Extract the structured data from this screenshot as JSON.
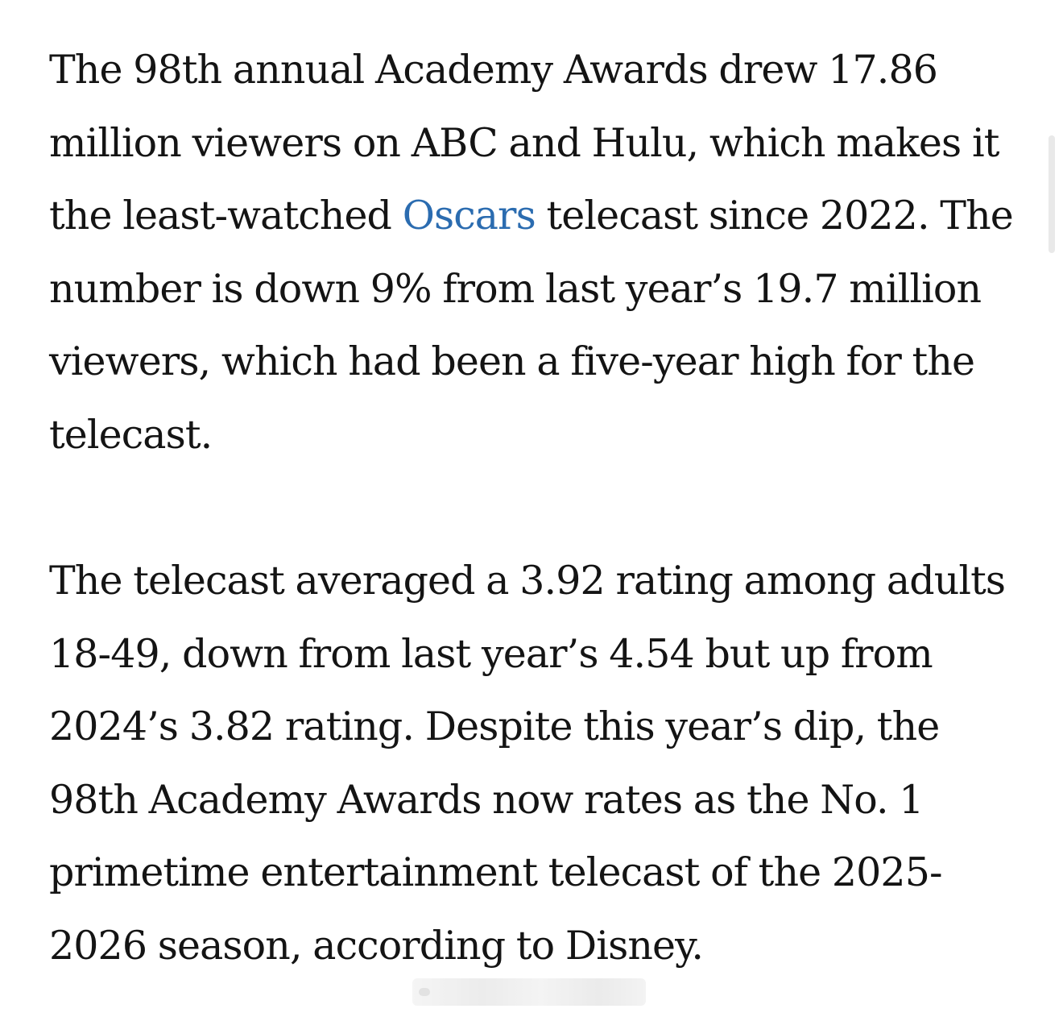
{
  "article": {
    "paragraph1": {
      "before_link": "The 98th annual Academy Awards drew 17.86 million viewers on ABC and Hulu, which makes it the least-watched ",
      "link_text": "Oscars",
      "after_link": " telecast since 2022. The number is down 9% from last year’s 19.7 million viewers, which had been a five-year high for the telecast."
    },
    "paragraph2": "The telecast averaged a 3.92 rating among adults 18-49, down from last year’s 4.54 but up from 2024’s 3.82 rating. Despite this year’s dip, the 98th Academy Awards now rates as the No. 1 primetime entertainment telecast of the 2025-2026 season, according to Disney."
  },
  "colors": {
    "text": "#141414",
    "link": "#2b6cb0",
    "background": "#ffffff"
  }
}
